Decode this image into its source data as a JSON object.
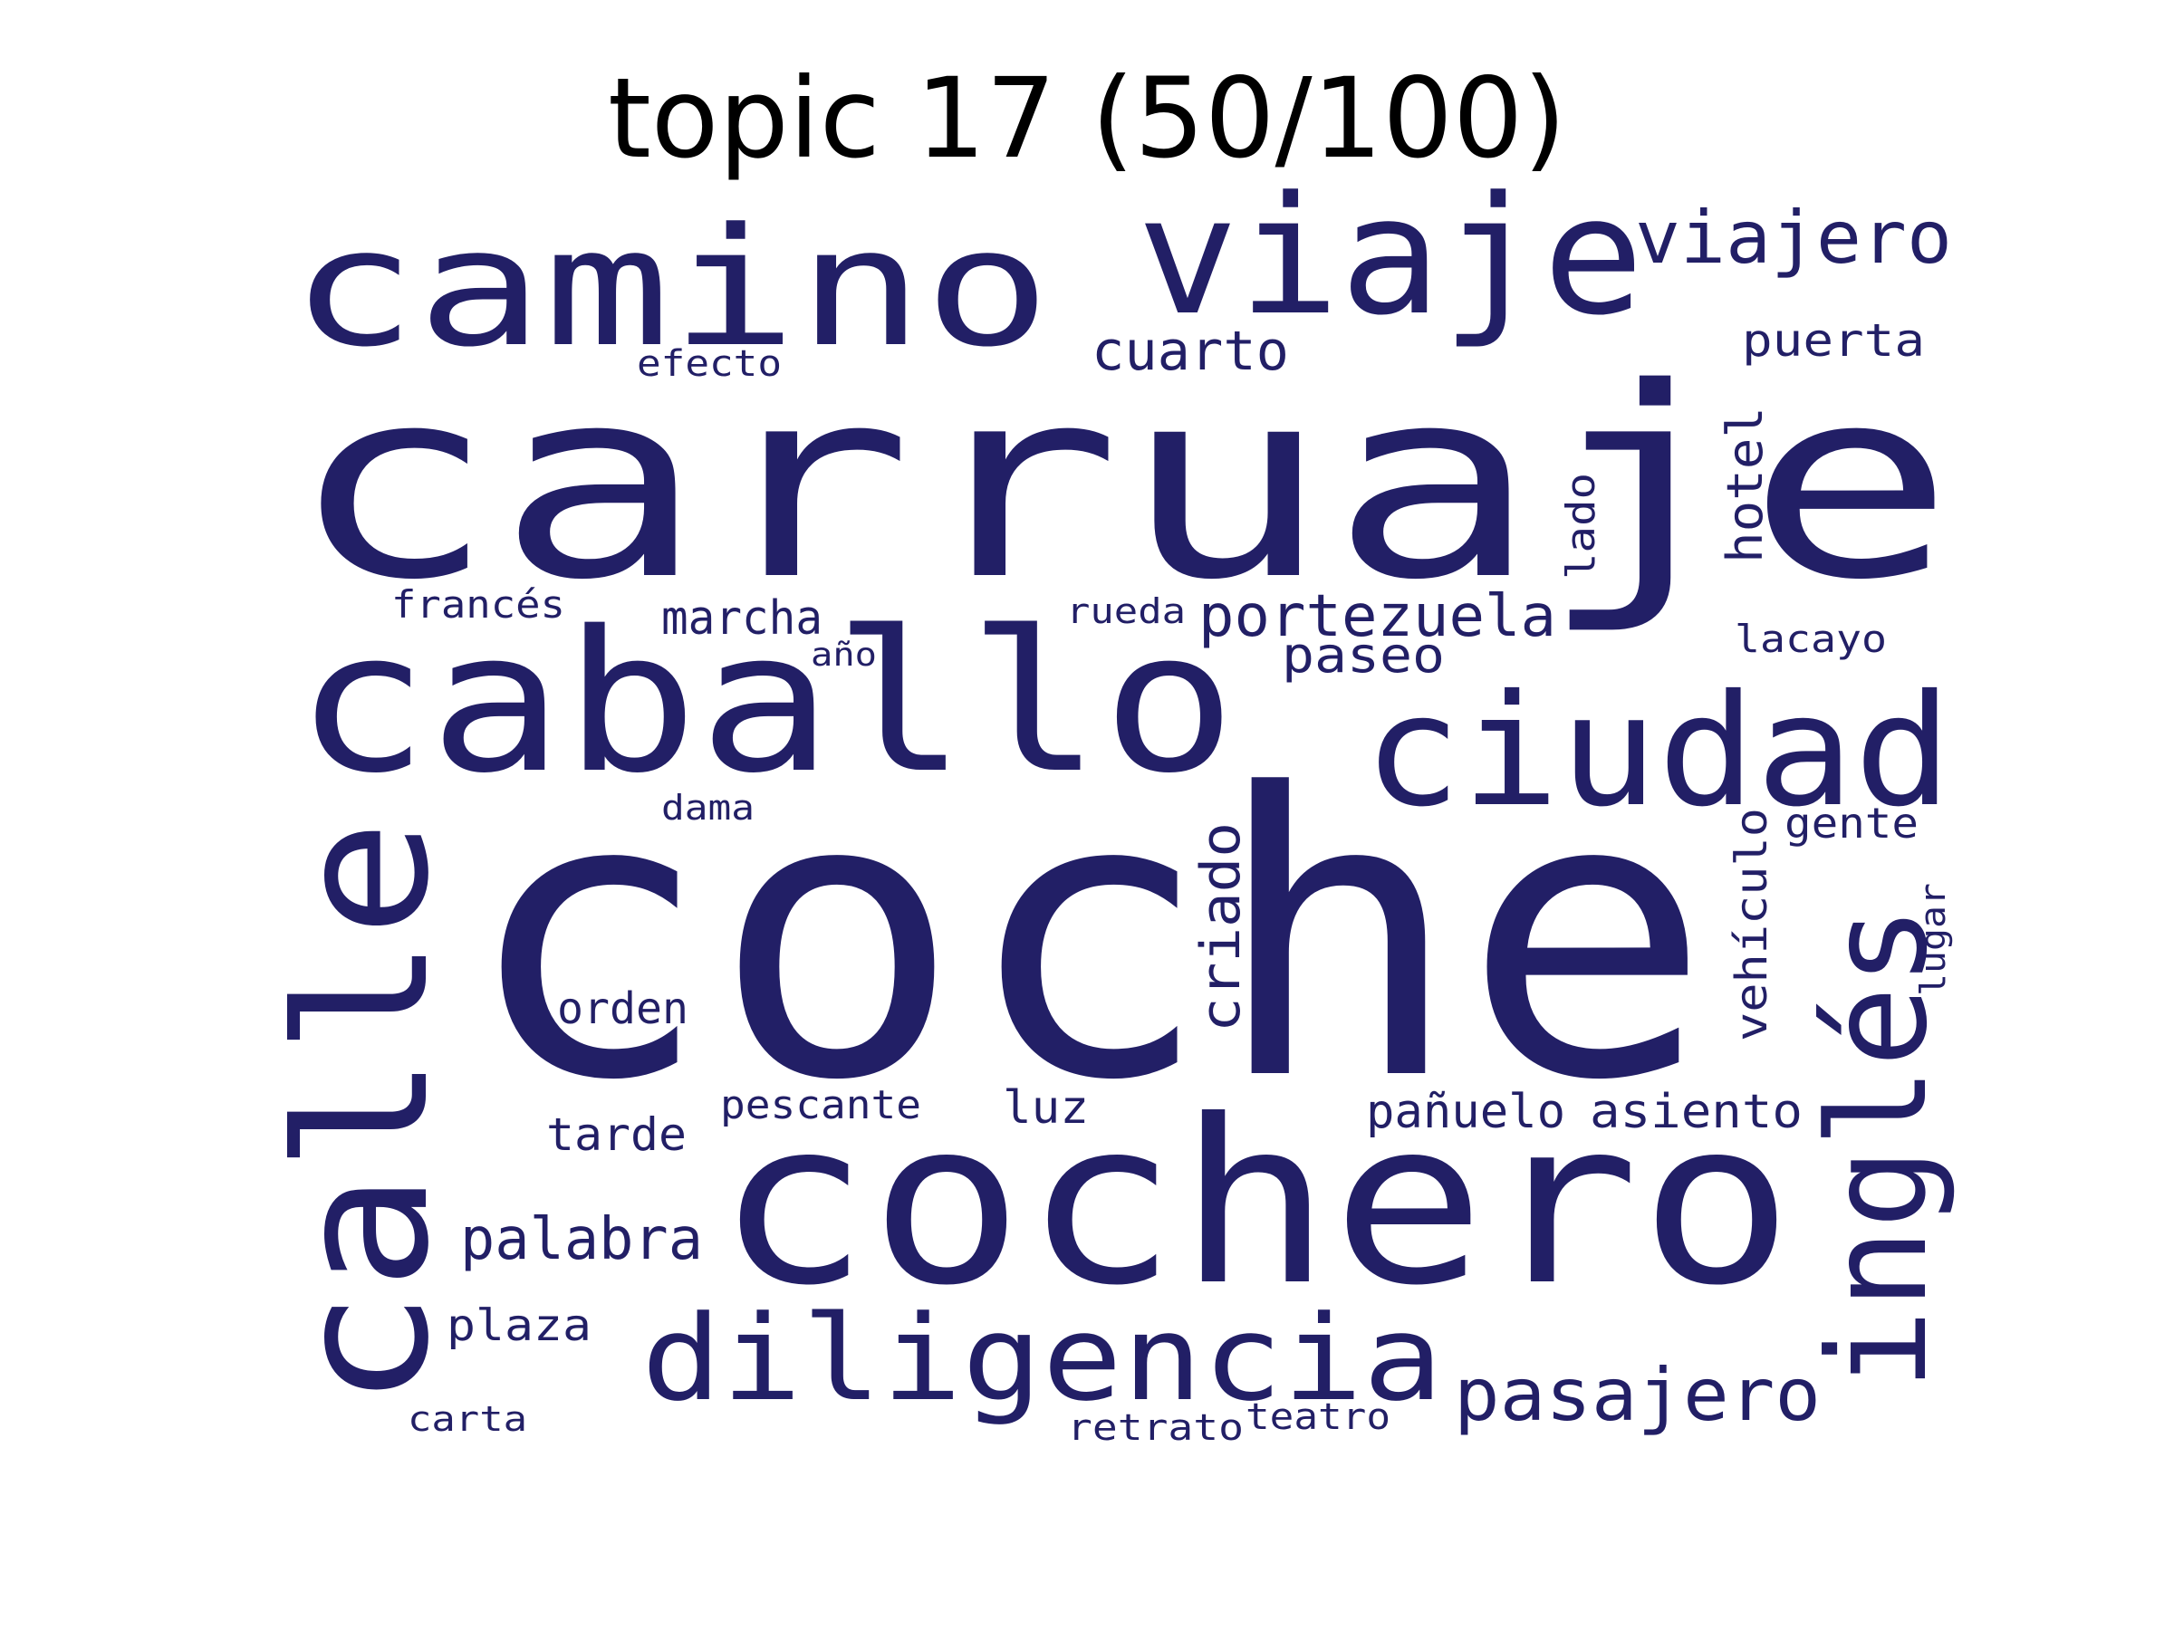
{
  "title": "topic 17 (50/100)",
  "colors": {
    "word": "#221f66",
    "title": "#000000",
    "background": "#ffffff"
  },
  "words": [
    "coche",
    "carruaje",
    "cochero",
    "caballo",
    "calle",
    "camino",
    "viaje",
    "ciudad",
    "inglés",
    "diligencia",
    "viajero",
    "pasajero",
    "portezuela",
    "palabra",
    "criado",
    "cuarto",
    "puerta",
    "hotel",
    "paseo",
    "vehículo",
    "asiento",
    "pañuelo",
    "marcha",
    "orden",
    "tarde",
    "plaza",
    "luz",
    "pescante",
    "lado",
    "francés",
    "lacayo",
    "gente",
    "efecto",
    "rueda",
    "lugar",
    "retrato",
    "teatro",
    "carta",
    "dama",
    "año"
  ]
}
